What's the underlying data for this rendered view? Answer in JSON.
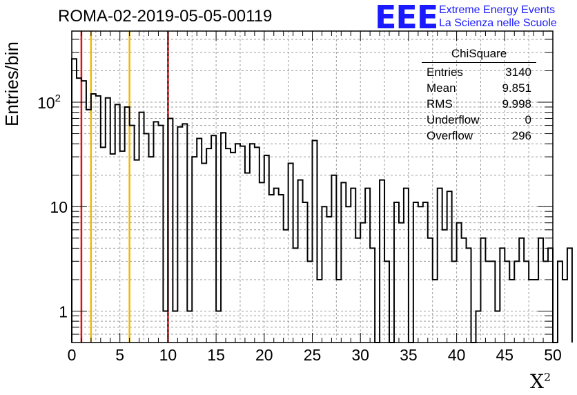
{
  "title": "ROMA-02-2019-05-05-00119",
  "logo": {
    "mark": "EEE",
    "line1": "Extreme Energy Events",
    "line2": "La Scienza nelle Scuole"
  },
  "stats": {
    "title": "ChiSquare",
    "rows": [
      {
        "label": "Entries",
        "value": "3140"
      },
      {
        "label": "Mean",
        "value": "9.851"
      },
      {
        "label": "RMS",
        "value": "9.998"
      },
      {
        "label": "Underflow",
        "value": "0"
      },
      {
        "label": "Overflow",
        "value": "296"
      }
    ]
  },
  "colors": {
    "red_line": "#dd1111",
    "yellow_line": "#f2b800",
    "hist": "#000000",
    "grid": "#9a9a9a"
  },
  "chart_data": {
    "type": "histogram",
    "xlabel": "X",
    "xlabel_sup": "2",
    "ylabel": "Entries/bin",
    "xlim": [
      0,
      50
    ],
    "ylim": [
      0.5,
      480
    ],
    "y_scale": "log",
    "grid": true,
    "bin_width": 0.5,
    "x_ticks": [
      0,
      5,
      10,
      15,
      20,
      25,
      30,
      35,
      40,
      45,
      50
    ],
    "y_tick_labels": [
      {
        "value": 1,
        "label": "1"
      },
      {
        "value": 10,
        "label": "10"
      },
      {
        "value": 100,
        "label": "10",
        "sup": "2"
      }
    ],
    "vertical_lines": [
      {
        "x": 1,
        "color": "red",
        "style": "solid"
      },
      {
        "x": 2,
        "color": "yellow",
        "style": "solid"
      },
      {
        "x": 6,
        "color": "yellow",
        "style": "solid"
      },
      {
        "x": 10,
        "color": "red",
        "style": "dashed"
      }
    ],
    "values": [
      260,
      170,
      160,
      85,
      120,
      115,
      37,
      110,
      32,
      95,
      34,
      90,
      60,
      28,
      80,
      50,
      30,
      65,
      60,
      1,
      70,
      1,
      58,
      62,
      1,
      30,
      45,
      26,
      36,
      48,
      1,
      51,
      36,
      33,
      40,
      38,
      21,
      40,
      37,
      17,
      31,
      13,
      15,
      13,
      6,
      26,
      4,
      18,
      11,
      3,
      43,
      2,
      10,
      8,
      20,
      2,
      17,
      10,
      15,
      5,
      7,
      15,
      4,
      0,
      18,
      3,
      0,
      11,
      7,
      15,
      0,
      11,
      10,
      11,
      5,
      2,
      15,
      6,
      14,
      3,
      7,
      5,
      4,
      0,
      1,
      5,
      3,
      3,
      1,
      4,
      3,
      2,
      3,
      5,
      3,
      2,
      2,
      5,
      3,
      4,
      0,
      3,
      2,
      4
    ]
  }
}
